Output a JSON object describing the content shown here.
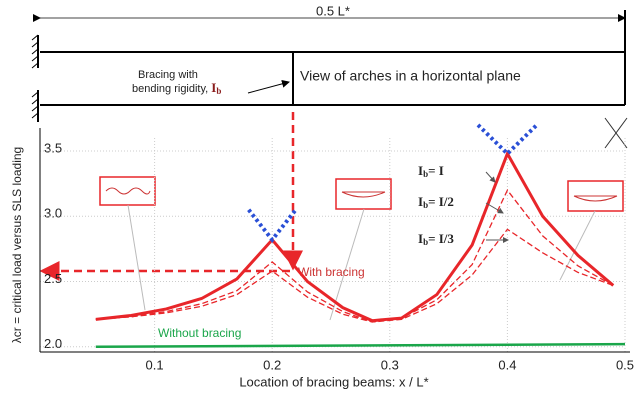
{
  "chart_data": {
    "type": "line",
    "dimension_label": "0.5 L*",
    "bracing_text": [
      "Bracing with",
      "bending rigidity, "
    ],
    "bracing_symbol": {
      "base": "I",
      "sub": "b"
    },
    "plan_title": "View of arches in a horizontal plane",
    "x_label": "Location of bracing beams: x / L*",
    "y_label": "λcr = critical load versus SLS loading",
    "annotations": [
      "With bracing",
      "Without bracing"
    ],
    "xlim": [
      0,
      0.5
    ],
    "xticks": [
      0.1,
      0.2,
      0.3,
      0.4,
      0.5
    ],
    "ylim": [
      1.96,
      3.6
    ],
    "yticks": [
      {
        "value": 2,
        "label": "2.0"
      },
      2.5,
      {
        "value": 3,
        "label": "3.0"
      },
      3.5
    ],
    "grid": true,
    "series": [
      {
        "name": {
          "base": "I",
          "sub": "b",
          "rest": "= I"
        },
        "color": "#e8262a",
        "style": "solid",
        "x": [
          0.05,
          0.08,
          0.11,
          0.14,
          0.17,
          0.2,
          0.23,
          0.26,
          0.285,
          0.31,
          0.34,
          0.37,
          0.4,
          0.43,
          0.46,
          0.49
        ],
        "values": [
          2.21,
          2.24,
          2.29,
          2.37,
          2.52,
          2.82,
          2.5,
          2.3,
          2.2,
          2.22,
          2.4,
          2.78,
          3.48,
          3.0,
          2.7,
          2.47
        ]
      },
      {
        "name": {
          "base": "I",
          "sub": "b",
          "rest": "= I/2"
        },
        "color": "#e8262a",
        "style": "dashed",
        "x": [
          0.05,
          0.08,
          0.11,
          0.14,
          0.17,
          0.2,
          0.23,
          0.26,
          0.285,
          0.31,
          0.34,
          0.37,
          0.4,
          0.43,
          0.46,
          0.49
        ],
        "values": [
          2.21,
          2.23,
          2.27,
          2.33,
          2.43,
          2.65,
          2.42,
          2.27,
          2.19,
          2.22,
          2.36,
          2.63,
          3.2,
          2.85,
          2.62,
          2.47
        ]
      },
      {
        "name": {
          "base": "I",
          "sub": "b",
          "rest": "= I/3"
        },
        "color": "#e8262a",
        "style": "dashed",
        "x": [
          0.05,
          0.08,
          0.11,
          0.14,
          0.17,
          0.2,
          0.23,
          0.26,
          0.285,
          0.31,
          0.34,
          0.37,
          0.4,
          0.43,
          0.46,
          0.49
        ],
        "values": [
          2.21,
          2.23,
          2.26,
          2.31,
          2.4,
          2.58,
          2.38,
          2.25,
          2.19,
          2.21,
          2.33,
          2.55,
          2.9,
          2.72,
          2.57,
          2.47
        ]
      },
      {
        "color": "#1aa64a",
        "style": "solid",
        "x": [
          0.05,
          0.5
        ],
        "values": [
          2.0,
          2.02
        ]
      },
      {
        "color": "#2a4fd6",
        "style": "dotted",
        "x": [
          0.18,
          0.2,
          0.22
        ],
        "values": [
          3.05,
          2.82,
          3.05
        ]
      },
      {
        "color": "#2a4fd6",
        "style": "dotted",
        "x": [
          0.375,
          0.4,
          0.425
        ],
        "values": [
          3.7,
          3.48,
          3.7
        ]
      }
    ]
  }
}
